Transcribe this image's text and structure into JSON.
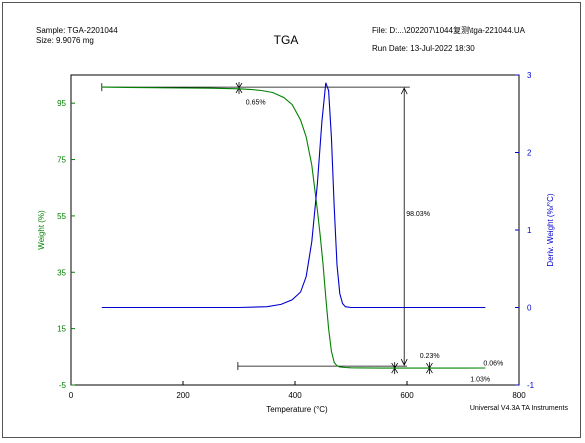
{
  "header": {
    "sample": "Sample: TGA-2201044",
    "size": "Size:  9.9076 mg",
    "title": "TGA",
    "file": "File: D:...\\202207\\1044复测\\tga-221044.UA",
    "run_date": "Run Date: 13-Jul-2022 18:30"
  },
  "footer": {
    "software": "Universal V4.3A TA Instruments"
  },
  "colors": {
    "weight_curve": "#008000",
    "deriv_curve": "#0000cc",
    "left_axis": "#008000",
    "right_axis": "#0000cc",
    "annotation": "#000000"
  },
  "chart_data": {
    "type": "line",
    "title": "TGA",
    "xlabel": "Temperature (°C)",
    "ylabel_left": "Weight (%)",
    "ylabel_right": "Deriv. Weight (%/°C)",
    "xlim": [
      0,
      800
    ],
    "ylim_left": [
      -5,
      105
    ],
    "ylim_right": [
      -1,
      3
    ],
    "x_ticks": [
      0,
      200,
      400,
      600,
      800
    ],
    "y_left_ticks": [
      -5,
      15,
      35,
      55,
      75,
      95
    ],
    "y_right_ticks": [
      -1,
      0,
      1,
      2,
      3
    ],
    "grid": false,
    "series": [
      {
        "name": "Weight (%)",
        "axis": "left",
        "x": [
          55,
          100,
          150,
          200,
          250,
          300,
          320,
          340,
          360,
          380,
          395,
          410,
          420,
          430,
          440,
          445,
          450,
          455,
          460,
          465,
          470,
          475,
          480,
          490,
          500,
          520,
          560,
          600,
          650,
          700,
          740
        ],
        "y": [
          100.7,
          100.6,
          100.5,
          100.4,
          100.3,
          100.1,
          99.9,
          99.5,
          98.8,
          97.0,
          94.5,
          89.0,
          83.0,
          73.0,
          57.0,
          48.0,
          38.0,
          26.0,
          15.0,
          7.0,
          3.0,
          1.8,
          1.4,
          1.2,
          1.1,
          1.05,
          1.0,
          1.0,
          1.0,
          1.0,
          1.03
        ]
      },
      {
        "name": "Deriv. Weight (%/°C)",
        "axis": "right",
        "x": [
          55,
          100,
          200,
          300,
          350,
          375,
          395,
          410,
          420,
          430,
          440,
          448,
          455,
          460,
          465,
          470,
          475,
          480,
          485,
          490,
          500,
          550,
          600,
          650,
          700,
          740
        ],
        "y": [
          0.0,
          0.0,
          0.0,
          0.0,
          0.01,
          0.04,
          0.1,
          0.2,
          0.4,
          0.85,
          1.6,
          2.4,
          2.9,
          2.8,
          2.2,
          1.3,
          0.55,
          0.18,
          0.05,
          0.01,
          0.0,
          0.0,
          0.0,
          0.0,
          0.0,
          0.0
        ]
      }
    ],
    "annotations": [
      {
        "label": "0.65%",
        "x": 305,
        "y": 98.0
      },
      {
        "label": "98.03%",
        "x": 595,
        "y": 55.0
      },
      {
        "label": "0.23%",
        "x": 612,
        "y": 2.5
      },
      {
        "label": "0.06%",
        "x": 740,
        "y": 2.0
      },
      {
        "label": "1.03%",
        "x": 713,
        "y": -1.0
      }
    ]
  }
}
